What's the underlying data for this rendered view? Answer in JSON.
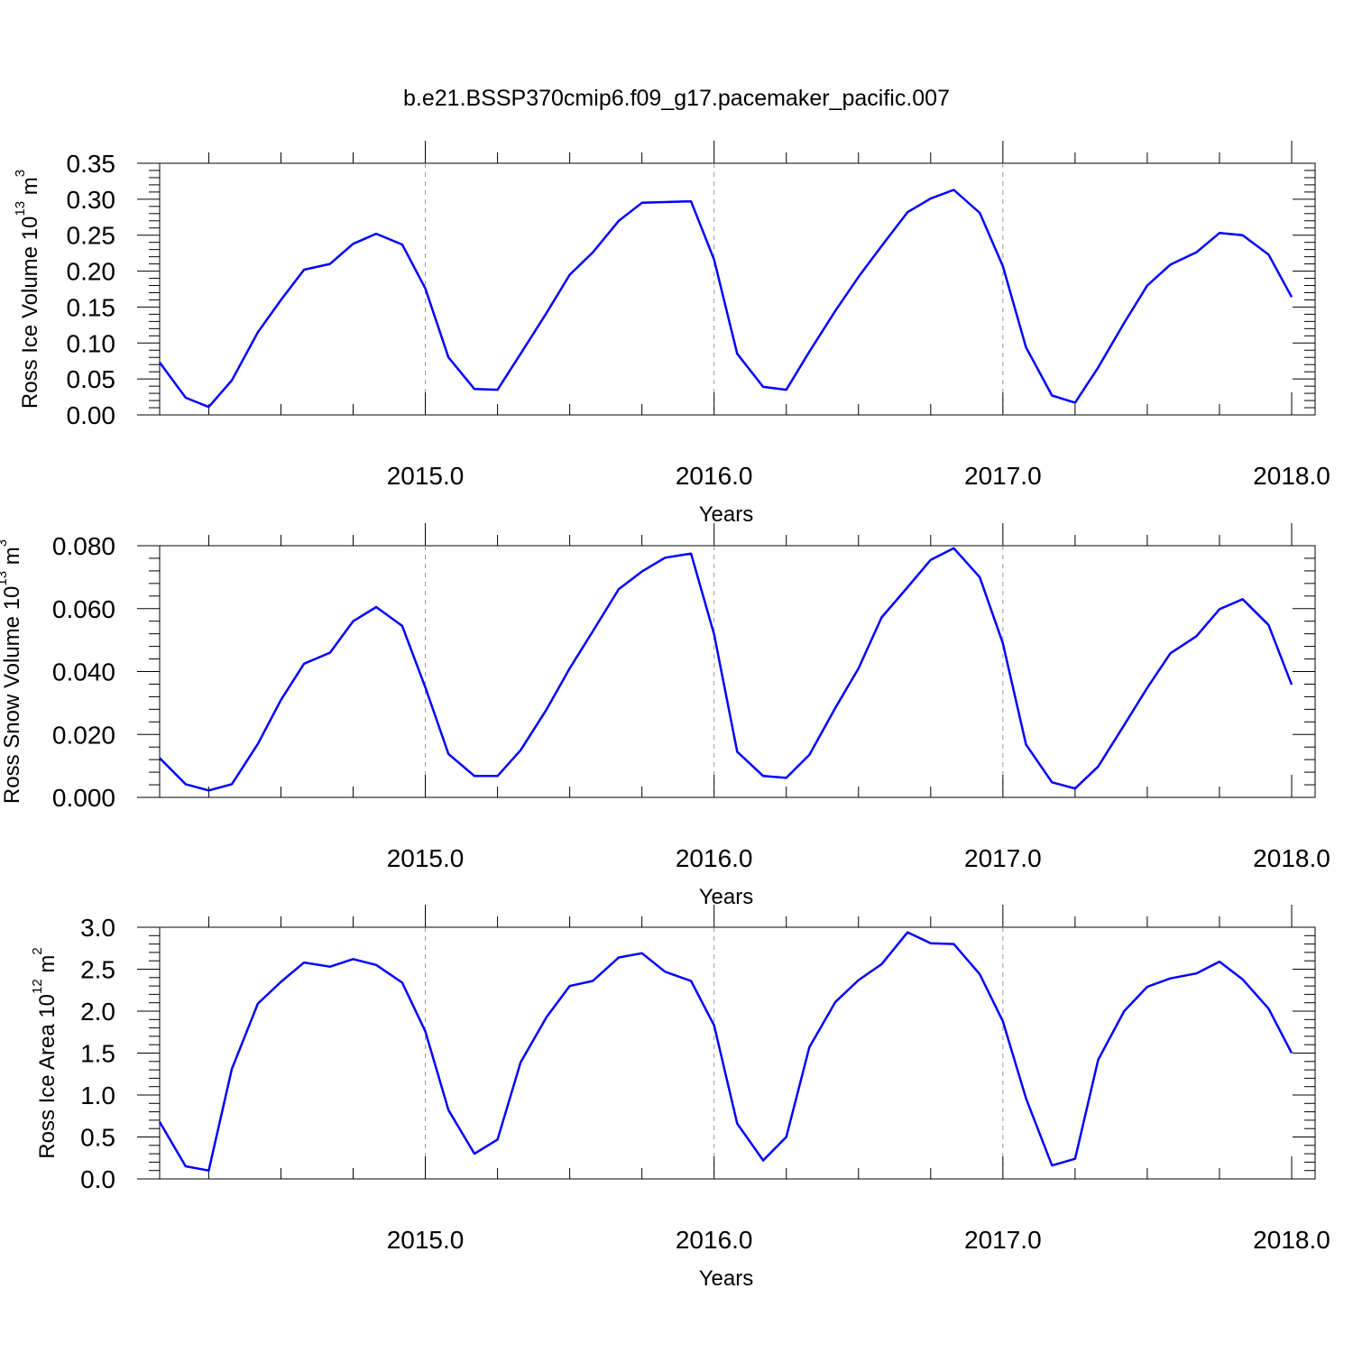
{
  "title": "b.e21.BSSP370cmip6.f09_g17.pacemaker_pacific.007",
  "colors": {
    "line": "#0000ff",
    "frame": "#000000",
    "grid": "#999999"
  },
  "chart_data": [
    {
      "type": "line",
      "xlabel": "Years",
      "ylabel_main": "Ross Ice Volume 10",
      "ylabel_exp": "13",
      "ylabel_unit": " m",
      "ylabel_unit_exp": "3",
      "xlim": [
        2014.08,
        2018.0
      ],
      "ylim": [
        0.0,
        0.35
      ],
      "xticks": [
        2015.0,
        2016.0,
        2017.0,
        2018.0
      ],
      "xtick_labels": [
        "2015.0",
        "2016.0",
        "2017.0",
        "2018.0"
      ],
      "yticks": [
        0.0,
        0.05,
        0.1,
        0.15,
        0.2,
        0.25,
        0.3,
        0.35
      ],
      "ytick_labels": [
        "0.00",
        "0.05",
        "0.10",
        "0.15",
        "0.20",
        "0.25",
        "0.30",
        "0.35"
      ],
      "vgrid": [
        2015.0,
        2016.0,
        2017.0
      ],
      "x": [
        2014.08,
        2014.17,
        2014.25,
        2014.33,
        2014.42,
        2014.5,
        2014.58,
        2014.67,
        2014.75,
        2014.83,
        2014.92,
        2015.0,
        2015.08,
        2015.17,
        2015.25,
        2015.33,
        2015.42,
        2015.5,
        2015.58,
        2015.67,
        2015.75,
        2015.83,
        2015.92,
        2016.0,
        2016.08,
        2016.17,
        2016.25,
        2016.33,
        2016.42,
        2016.5,
        2016.58,
        2016.67,
        2016.75,
        2016.83,
        2016.92,
        2017.0,
        2017.08,
        2017.17,
        2017.25,
        2017.33,
        2017.42,
        2017.5,
        2017.58,
        2017.67,
        2017.75,
        2017.83,
        2017.92,
        2018.0
      ],
      "y": [
        0.073,
        0.024,
        0.011,
        0.048,
        0.115,
        0.16,
        0.202,
        0.21,
        0.238,
        0.252,
        0.237,
        0.176,
        0.08,
        0.036,
        0.035,
        0.085,
        0.142,
        0.195,
        0.226,
        0.27,
        0.295,
        0.296,
        0.297,
        0.216,
        0.085,
        0.039,
        0.035,
        0.088,
        0.145,
        0.192,
        0.235,
        0.282,
        0.301,
        0.313,
        0.281,
        0.207,
        0.094,
        0.027,
        0.017,
        0.066,
        0.128,
        0.18,
        0.209,
        0.226,
        0.253,
        0.25,
        0.223,
        0.164
      ]
    },
    {
      "type": "line",
      "xlabel": "Years",
      "ylabel_main": "Ross Snow Volume 10",
      "ylabel_exp": "13",
      "ylabel_unit": " m",
      "ylabel_unit_exp": "3",
      "xlim": [
        2014.08,
        2018.0
      ],
      "ylim": [
        0.0,
        0.08
      ],
      "xticks": [
        2015.0,
        2016.0,
        2017.0,
        2018.0
      ],
      "xtick_labels": [
        "2015.0",
        "2016.0",
        "2017.0",
        "2018.0"
      ],
      "yticks": [
        0.0,
        0.02,
        0.04,
        0.06,
        0.08
      ],
      "ytick_labels": [
        "0.000",
        "0.020",
        "0.040",
        "0.060",
        "0.080"
      ],
      "vgrid": [
        2015.0,
        2016.0,
        2017.0
      ],
      "x": [
        2014.08,
        2014.17,
        2014.25,
        2014.33,
        2014.42,
        2014.5,
        2014.58,
        2014.67,
        2014.75,
        2014.83,
        2014.92,
        2015.0,
        2015.08,
        2015.17,
        2015.25,
        2015.33,
        2015.42,
        2015.5,
        2015.58,
        2015.67,
        2015.75,
        2015.83,
        2015.92,
        2016.0,
        2016.08,
        2016.17,
        2016.25,
        2016.33,
        2016.42,
        2016.5,
        2016.58,
        2016.67,
        2016.75,
        2016.83,
        2016.92,
        2017.0,
        2017.08,
        2017.17,
        2017.25,
        2017.33,
        2017.42,
        2017.5,
        2017.58,
        2017.67,
        2017.75,
        2017.83,
        2017.92,
        2018.0
      ],
      "y": [
        0.0125,
        0.0042,
        0.0022,
        0.0042,
        0.017,
        0.031,
        0.0425,
        0.046,
        0.056,
        0.0605,
        0.0545,
        0.035,
        0.0138,
        0.0068,
        0.0068,
        0.015,
        0.028,
        0.041,
        0.0528,
        0.0662,
        0.0718,
        0.0762,
        0.0775,
        0.0518,
        0.0145,
        0.0068,
        0.0062,
        0.0135,
        0.0285,
        0.041,
        0.0572,
        0.0668,
        0.0755,
        0.0792,
        0.07,
        0.049,
        0.0168,
        0.0048,
        0.0028,
        0.0098,
        0.023,
        0.0348,
        0.0458,
        0.0512,
        0.0598,
        0.063,
        0.0548,
        0.0358
      ]
    },
    {
      "type": "line",
      "xlabel": "Years",
      "ylabel_main": "Ross Ice Area 10",
      "ylabel_exp": "12",
      "ylabel_unit": " m",
      "ylabel_unit_exp": "2",
      "xlim": [
        2014.08,
        2018.0
      ],
      "ylim": [
        0.0,
        3.0
      ],
      "xticks": [
        2015.0,
        2016.0,
        2017.0,
        2018.0
      ],
      "xtick_labels": [
        "2015.0",
        "2016.0",
        "2017.0",
        "2018.0"
      ],
      "yticks": [
        0.0,
        0.5,
        1.0,
        1.5,
        2.0,
        2.5,
        3.0
      ],
      "ytick_labels": [
        "0.0",
        "0.5",
        "1.0",
        "1.5",
        "2.0",
        "2.5",
        "3.0"
      ],
      "vgrid": [
        2015.0,
        2016.0,
        2017.0
      ],
      "x": [
        2014.08,
        2014.17,
        2014.25,
        2014.33,
        2014.42,
        2014.5,
        2014.58,
        2014.67,
        2014.75,
        2014.83,
        2014.92,
        2015.0,
        2015.08,
        2015.17,
        2015.25,
        2015.33,
        2015.42,
        2015.5,
        2015.58,
        2015.67,
        2015.75,
        2015.83,
        2015.92,
        2016.0,
        2016.08,
        2016.17,
        2016.25,
        2016.33,
        2016.42,
        2016.5,
        2016.58,
        2016.67,
        2016.75,
        2016.83,
        2016.92,
        2017.0,
        2017.08,
        2017.17,
        2017.25,
        2017.33,
        2017.42,
        2017.5,
        2017.58,
        2017.67,
        2017.75,
        2017.83,
        2017.92,
        2018.0
      ],
      "y": [
        0.68,
        0.15,
        0.1,
        1.31,
        2.09,
        2.35,
        2.58,
        2.53,
        2.62,
        2.55,
        2.34,
        1.76,
        0.82,
        0.3,
        0.47,
        1.39,
        1.93,
        2.3,
        2.36,
        2.64,
        2.69,
        2.47,
        2.36,
        1.83,
        0.66,
        0.22,
        0.5,
        1.57,
        2.11,
        2.37,
        2.56,
        2.94,
        2.81,
        2.8,
        2.44,
        1.88,
        0.96,
        0.16,
        0.24,
        1.42,
        2.0,
        2.29,
        2.39,
        2.45,
        2.59,
        2.38,
        2.03,
        1.5
      ]
    }
  ]
}
